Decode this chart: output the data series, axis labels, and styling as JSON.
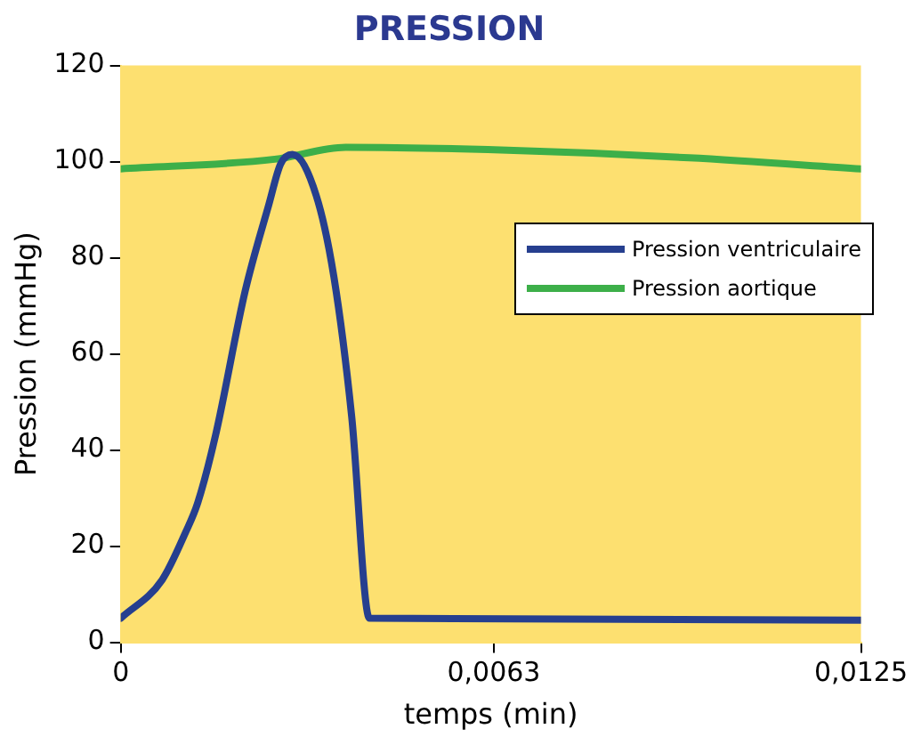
{
  "chart_data": {
    "type": "line",
    "title": "PRESSION",
    "xlabel": "temps (min)",
    "ylabel": "Pression (mmHg)",
    "xlim": [
      0,
      0.0125
    ],
    "xticks": [
      0,
      {
        "value": 0.0063,
        "label": "0,0063"
      },
      {
        "value": 0.0125,
        "label": "0,0125"
      }
    ],
    "ylim": [
      0,
      120
    ],
    "yticks": [
      0,
      20,
      40,
      60,
      80,
      100,
      120
    ],
    "grid": false,
    "legend": "top right",
    "marker": "none",
    "line_style": "solid",
    "series": [
      {
        "name": "Pression ventriculaire",
        "color": "#263f8f",
        "x": [
          0,
          0.0007,
          0.0011,
          0.0013,
          0.0016,
          0.0021,
          0.0025,
          0.0027,
          0.0029,
          0.0033,
          0.0036,
          0.0039,
          0.0042,
          0.0125
        ],
        "values": [
          5,
          13,
          23,
          29,
          43,
          73,
          91,
          99.5,
          101.5,
          93,
          76,
          47,
          5,
          4.6
        ]
      },
      {
        "name": "Pression aortique",
        "color": "#3daf49",
        "x": [
          0,
          0.0026,
          0.0038,
          0.0062,
          0.0096,
          0.0125
        ],
        "values": [
          98.5,
          100.5,
          103,
          102.5,
          100.8,
          98.5
        ]
      }
    ]
  }
}
